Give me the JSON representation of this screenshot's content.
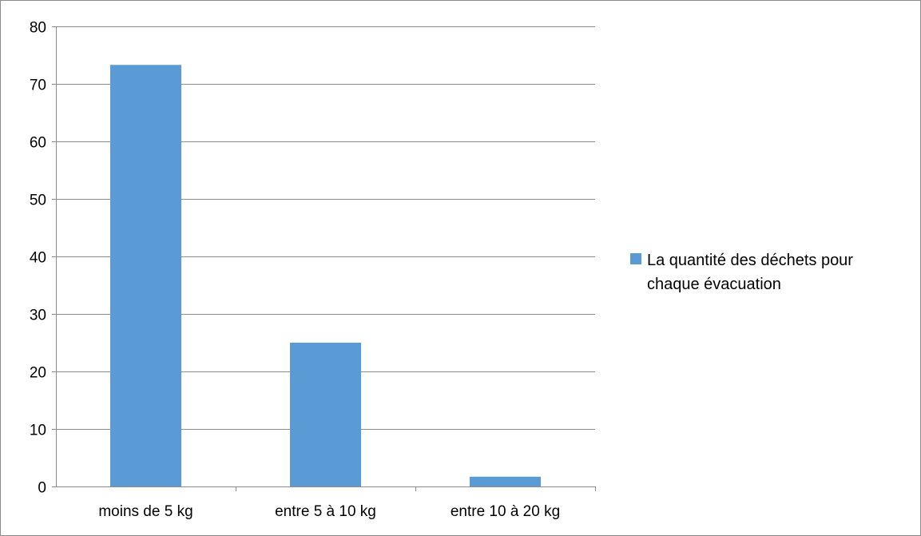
{
  "chart_data": {
    "type": "bar",
    "categories": [
      "moins de 5 kg",
      "entre 5 à 10 kg",
      "entre 10 à 20 kg"
    ],
    "series": [
      {
        "name": "La quantité des déchets pour chaque évacuation",
        "values": [
          73.3,
          25,
          1.7
        ],
        "color": "#5b9bd5"
      }
    ],
    "y_ticks": [
      "0",
      "10",
      "20",
      "30",
      "40",
      "50",
      "60",
      "70",
      "80"
    ],
    "ylim": [
      0,
      80
    ],
    "grid": true,
    "legend_position": "right",
    "legend_lines": [
      "La quantité des déchets pour",
      "chaque évacuation"
    ]
  }
}
